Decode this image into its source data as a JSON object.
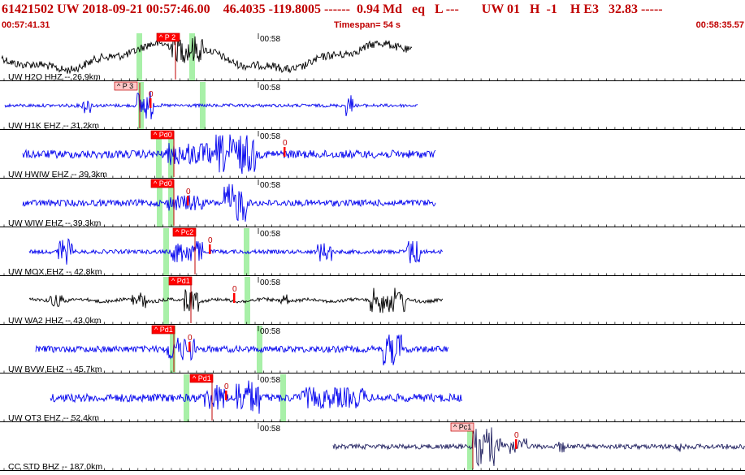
{
  "header": {
    "event_id": "61421502",
    "network": "UW",
    "datetime": "2018-09-21 00:57:46.00",
    "lat": "46.4035",
    "lon": "-119.8005",
    "depth": "------",
    "magnitude": "0.94",
    "mag_type": "Md",
    "event_type": "eq",
    "flag": "L",
    "dashes": "---",
    "code": "UW 01",
    "h_flag": "H",
    "num": "-1",
    "h_e3": "H E3",
    "value": "32.83",
    "trail": "-----"
  },
  "subheader": {
    "start_time": "00:57:41.31",
    "timespan_label": "Timespan=",
    "timespan_value": "54 s",
    "end_time": "00:58:35.57"
  },
  "colors": {
    "header_text": "#c00000",
    "trace_blue": "#0000ee",
    "trace_black": "#000000",
    "trace_navy": "#202060",
    "pick_box": "#ff0000",
    "pick_box_pale": "#ffc8c8",
    "phase_highlight": "#a8f0a8",
    "separator": "#000000"
  },
  "tick_label": "00:58",
  "panels": [
    {
      "label": "UW H2O HHZ -- 26,9km",
      "color": "black",
      "pick": "P 2",
      "pick_pale": false,
      "zero": false
    },
    {
      "label": "UW H1K EHZ -- 31,2km",
      "color": "blue",
      "pick": "P 3",
      "pick_pale": true,
      "zero": true
    },
    {
      "label": "UW HWIW EHZ -- 39,3km",
      "color": "blue",
      "pick": "Pd0",
      "pick_pale": false,
      "zero": true
    },
    {
      "label": "UW WIW EHZ -- 39,3km",
      "color": "blue",
      "pick": "Pd0",
      "pick_pale": false,
      "zero": true
    },
    {
      "label": "UW MOX EHZ -- 42,8km",
      "color": "blue",
      "pick": "Pc2",
      "pick_pale": false,
      "zero": true
    },
    {
      "label": "UW WA2 HHZ -- 43,0km",
      "color": "black",
      "pick": "Pd1",
      "pick_pale": false,
      "zero": true
    },
    {
      "label": "UW BVW EHZ -- 45,7km",
      "color": "blue",
      "pick": "Pd1",
      "pick_pale": false,
      "zero": true
    },
    {
      "label": "UW OT3 EHZ -- 52,4km",
      "color": "blue",
      "pick": "Pd1",
      "pick_pale": false,
      "zero": true
    },
    {
      "label": "CC STD BHZ -- 187,0km",
      "color": "navy",
      "pick": "Pc1",
      "pick_pale": true,
      "zero": true
    }
  ],
  "zero_label": "0"
}
